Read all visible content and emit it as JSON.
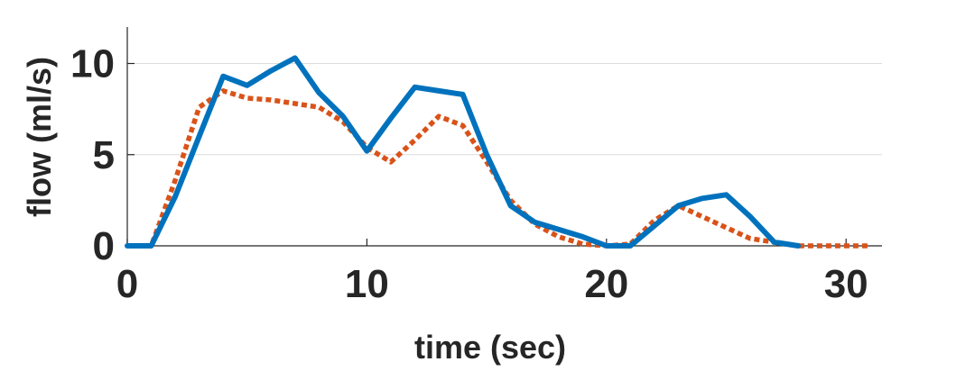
{
  "chart_data": {
    "type": "line",
    "xlabel": "time (sec)",
    "ylabel": "flow (ml/s)",
    "xlim": [
      0,
      31.5
    ],
    "ylim": [
      0,
      12
    ],
    "xticks": [
      0,
      10,
      20,
      30
    ],
    "yticks": [
      0,
      5,
      10
    ],
    "grid": "horizontal",
    "series": [
      {
        "color": "#0072BD",
        "style": "solid",
        "x": [
          0,
          1,
          2,
          3,
          4,
          5,
          6,
          7,
          8,
          9,
          10,
          11,
          12,
          13,
          14,
          15,
          16,
          17,
          18,
          19,
          20,
          21,
          22,
          23,
          24,
          25,
          26,
          27,
          28
        ],
        "y": [
          0,
          0,
          2.7,
          6.0,
          9.3,
          8.8,
          9.6,
          10.3,
          8.4,
          7.1,
          5.2,
          7.0,
          8.7,
          8.5,
          8.3,
          5.0,
          2.2,
          1.3,
          0.9,
          0.5,
          0.0,
          0.0,
          1.1,
          2.2,
          2.6,
          2.8,
          1.6,
          0.2,
          0.0
        ]
      },
      {
        "color": "#D95319",
        "style": "dotted",
        "x": [
          0,
          1,
          2,
          3,
          4,
          5,
          6,
          7,
          8,
          9,
          10,
          11,
          12,
          13,
          14,
          15,
          16,
          17,
          18,
          19,
          20,
          21,
          22,
          23,
          24,
          25,
          26,
          27,
          28,
          29,
          30,
          31
        ],
        "y": [
          0,
          0,
          3.6,
          7.6,
          8.5,
          8.1,
          8.0,
          7.8,
          7.6,
          6.8,
          5.4,
          4.6,
          5.8,
          7.1,
          6.6,
          4.6,
          2.5,
          1.2,
          0.5,
          0.1,
          0.0,
          0.1,
          1.4,
          2.2,
          1.6,
          1.0,
          0.4,
          0.2,
          0.0,
          0.0,
          0.0,
          0.0
        ]
      }
    ]
  }
}
